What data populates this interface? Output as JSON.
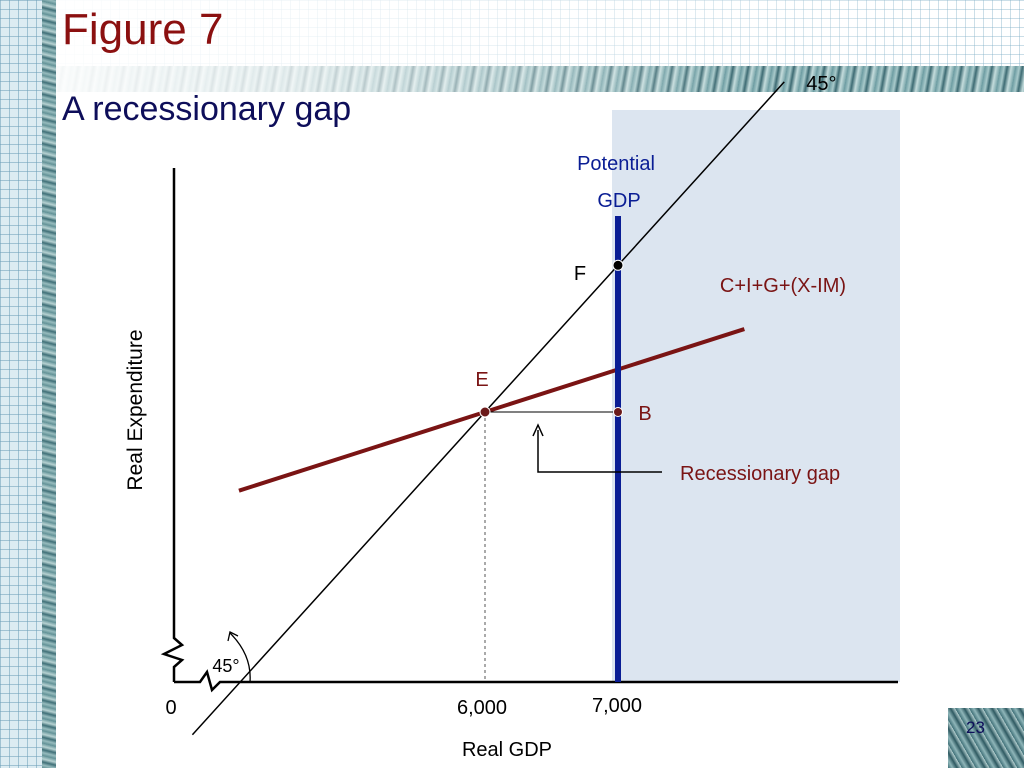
{
  "slide": {
    "title": "Figure 7",
    "subtitle": "A recessionary gap",
    "page_number": "23"
  },
  "colors": {
    "title": "#8b1010",
    "subtitle": "#0e0e5a",
    "aggregate_demand": "#7a1414",
    "potential_gdp": "#0a1d94",
    "shade": "#dce5f0",
    "point": "#6b1a1a"
  },
  "chart_data": {
    "type": "line",
    "xlabel": "Real GDP",
    "ylabel": "Real Expenditure",
    "x_ticks": [
      {
        "value": 0,
        "label": "0"
      },
      {
        "value": 6000,
        "label": "6,000"
      },
      {
        "value": 7000,
        "label": "7,000"
      }
    ],
    "series": [
      {
        "name": "45°"
      },
      {
        "name": "C+I+G+(X-IM)"
      }
    ],
    "potential_gdp": {
      "label_line1": "Potential",
      "label_line2": "GDP",
      "x": 7000
    },
    "points": [
      {
        "label": "E",
        "x": 6000,
        "y": 6000
      },
      {
        "label": "F",
        "x": 7000,
        "y": 7000
      },
      {
        "label": "B",
        "x": 7000,
        "y": 6000
      }
    ],
    "annotations": {
      "origin_angle": "45°",
      "gap_label": "Recessionary gap"
    }
  }
}
